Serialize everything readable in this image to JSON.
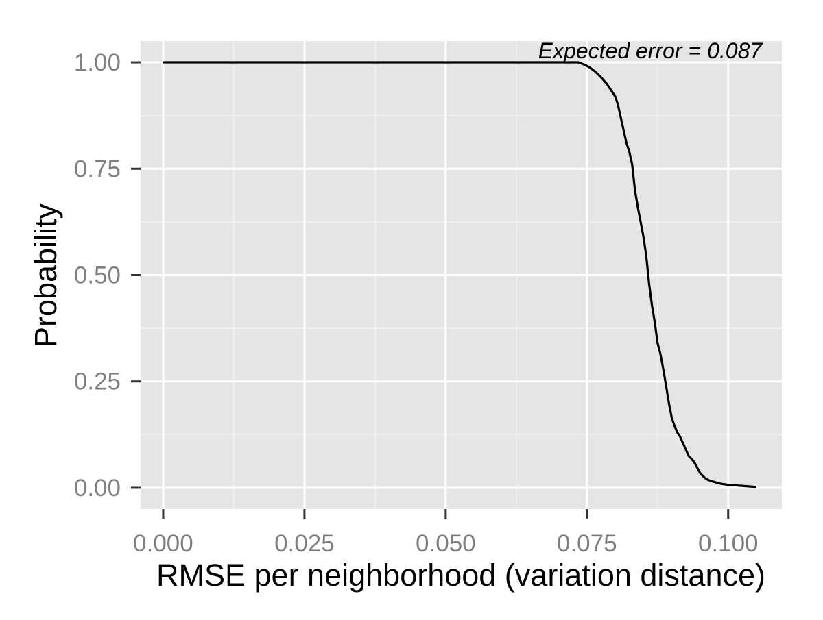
{
  "chart_data": {
    "type": "line",
    "title": "",
    "xlabel": "RMSE per neighborhood (variation distance)",
    "ylabel": "Probability",
    "xlim": [
      -0.004,
      0.1095
    ],
    "ylim": [
      -0.05,
      1.05
    ],
    "x_ticks": [
      0.0,
      0.025,
      0.05,
      0.075,
      0.1
    ],
    "x_tick_labels": [
      "0.000",
      "0.025",
      "0.050",
      "0.075",
      "0.100"
    ],
    "y_ticks": [
      0.0,
      0.25,
      0.5,
      0.75,
      1.0
    ],
    "y_tick_labels": [
      "0.00",
      "0.25",
      "0.50",
      "0.75",
      "1.00"
    ],
    "grid": true,
    "legend": "none",
    "colors": {
      "panel": "#e5e5e5",
      "grid_major": "#ffffff",
      "grid_minor": "#f2f2f2",
      "line": "#000000",
      "tick_label": "#7f7f7f"
    },
    "annotation": {
      "text": "Expected error = 0.087",
      "x": 0.106,
      "y": 1.01
    },
    "series": [
      {
        "x": [
          0.0,
          0.06,
          0.07,
          0.0735,
          0.0745,
          0.0755,
          0.0765,
          0.0775,
          0.0785,
          0.079,
          0.08,
          0.0805,
          0.081,
          0.0815,
          0.082,
          0.0825,
          0.083,
          0.0835,
          0.084,
          0.0845,
          0.085,
          0.0855,
          0.086,
          0.0865,
          0.087,
          0.0875,
          0.088,
          0.0885,
          0.089,
          0.0895,
          0.09,
          0.0905,
          0.091,
          0.0915,
          0.092,
          0.0925,
          0.093,
          0.0935,
          0.094,
          0.0945,
          0.095,
          0.0955,
          0.096,
          0.0965,
          0.097,
          0.0975,
          0.098,
          0.0985,
          0.099,
          0.0995,
          0.1,
          0.101,
          0.102,
          0.103,
          0.104,
          0.105
        ],
        "y": [
          1.0,
          1.0,
          1.0,
          1.0,
          0.995,
          0.988,
          0.978,
          0.965,
          0.95,
          0.94,
          0.92,
          0.9,
          0.87,
          0.84,
          0.81,
          0.79,
          0.76,
          0.7,
          0.66,
          0.625,
          0.59,
          0.545,
          0.48,
          0.43,
          0.39,
          0.34,
          0.315,
          0.28,
          0.24,
          0.2,
          0.165,
          0.145,
          0.13,
          0.12,
          0.105,
          0.09,
          0.075,
          0.068,
          0.06,
          0.048,
          0.035,
          0.028,
          0.022,
          0.018,
          0.016,
          0.014,
          0.012,
          0.01,
          0.009,
          0.008,
          0.007,
          0.006,
          0.005,
          0.004,
          0.003,
          0.002
        ]
      }
    ]
  }
}
